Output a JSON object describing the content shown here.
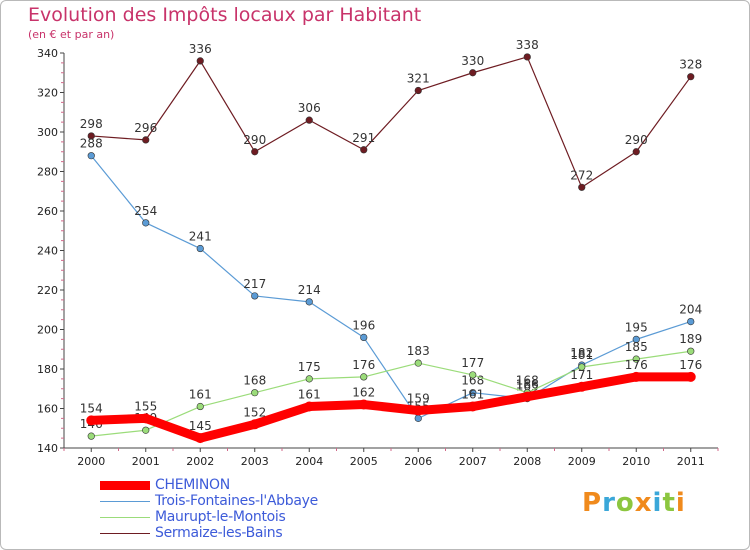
{
  "title": "Evolution des Impôts locaux par Habitant",
  "subtitle": "(en € et par an)",
  "logo": {
    "text": "Proxiti",
    "colors": [
      "#f08a1c",
      "#3aa7d9",
      "#8cc63f",
      "#f08a1c",
      "#3aa7d9",
      "#8cc63f",
      "#f08a1c"
    ]
  },
  "chart_data": {
    "type": "line",
    "x": [
      "2000",
      "2001",
      "2002",
      "2003",
      "2004",
      "2005",
      "2006",
      "2007",
      "2008",
      "2009",
      "2010",
      "2011"
    ],
    "ylim": [
      140,
      340
    ],
    "yticks": [
      140,
      160,
      180,
      200,
      220,
      240,
      260,
      280,
      300,
      320,
      340
    ],
    "grid": "none",
    "legend": "bottom-left",
    "series": [
      {
        "name": "Sermaize-les-Bains",
        "color": "#6e1c22",
        "values": [
          298,
          296,
          336,
          290,
          306,
          291,
          321,
          330,
          338,
          272,
          290,
          328
        ],
        "labels": [
          "298",
          "296",
          "336",
          "290",
          "306",
          "291",
          "321",
          "330",
          "338",
          "272",
          "290",
          "328"
        ]
      },
      {
        "name": "Trois-Fontaines-l'Abbaye",
        "color": "#5b9bd5",
        "values": [
          288,
          254,
          241,
          217,
          214,
          196,
          155,
          168,
          165,
          182,
          195,
          204
        ],
        "labels": [
          "288",
          "254",
          "241",
          "217",
          "214",
          "196",
          "155",
          "168",
          "165",
          "182",
          "195",
          "204"
        ]
      },
      {
        "name": "Maurupt-le-Montois",
        "color": "#9bdc7a",
        "values": [
          146,
          149,
          161,
          168,
          175,
          176,
          183,
          177,
          168,
          181,
          185,
          189
        ],
        "labels": [
          "146",
          "149",
          "161",
          "168",
          "175",
          "176",
          "183",
          "177",
          "168",
          "181",
          "185",
          "189"
        ]
      },
      {
        "name": "CHEMINON",
        "color": "#ff0000",
        "values": [
          154,
          155,
          145,
          152,
          161,
          162,
          159,
          161,
          166,
          171,
          176,
          176
        ],
        "labels": [
          "154",
          "155",
          "145",
          "152",
          "161",
          "162",
          "159",
          "161",
          "166",
          "171",
          "176",
          "176"
        ]
      }
    ]
  },
  "legend": [
    {
      "label": "CHEMINON",
      "color": "#ff0000"
    },
    {
      "label": "Trois-Fontaines-l'Abbaye",
      "color": "#5b9bd5"
    },
    {
      "label": "Maurupt-le-Montois",
      "color": "#9bdc7a"
    },
    {
      "label": "Sermaize-les-Bains",
      "color": "#6e1c22"
    }
  ]
}
